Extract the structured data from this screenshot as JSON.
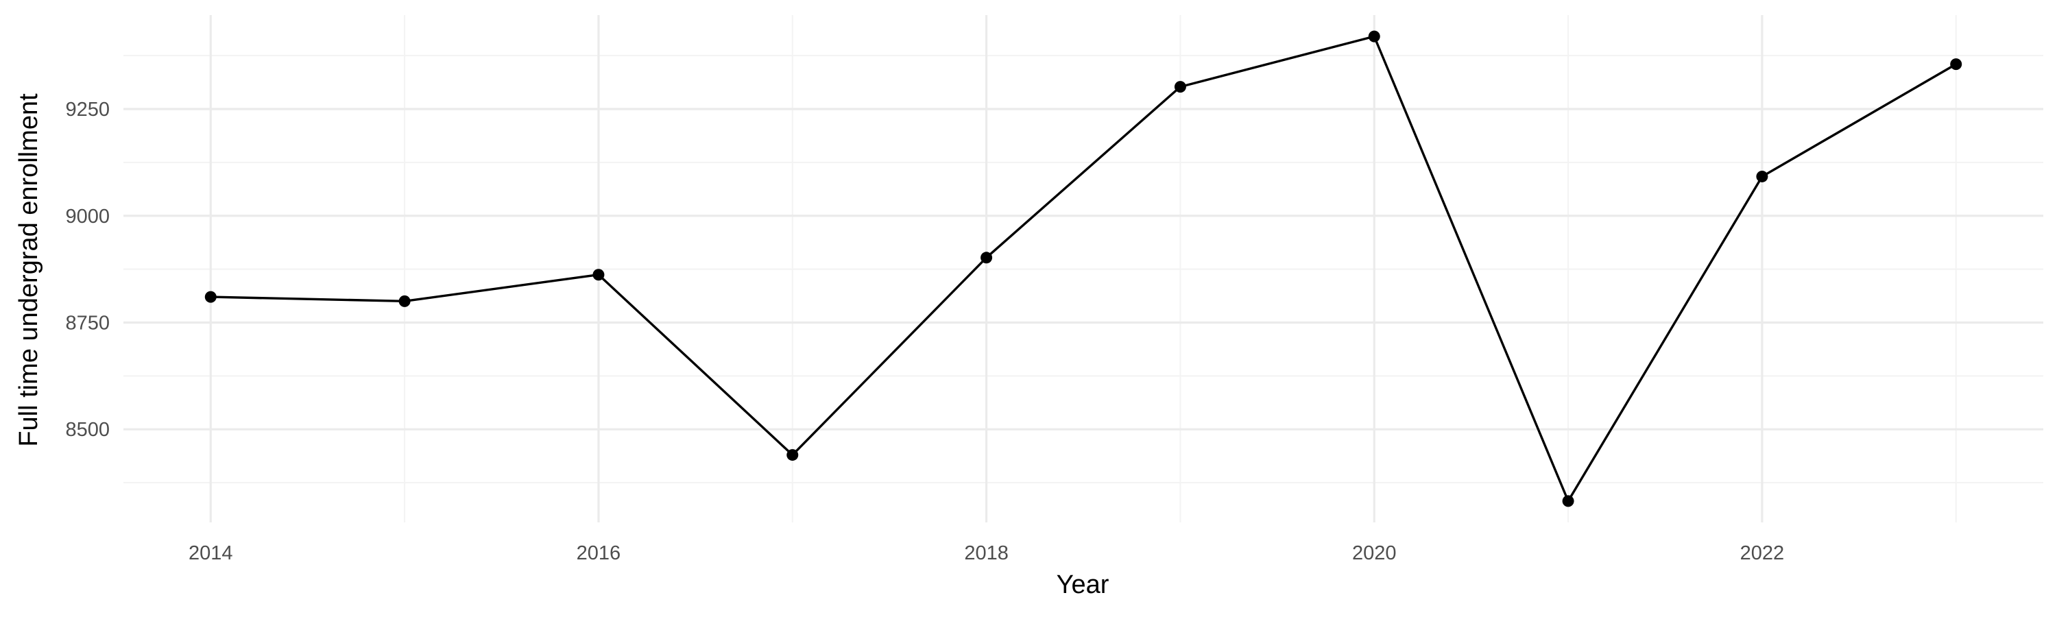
{
  "chart_data": {
    "type": "line",
    "title": "",
    "xlabel": "Year",
    "ylabel": "Full time undergrad enrollment",
    "x": [
      2014,
      2015,
      2016,
      2017,
      2018,
      2019,
      2020,
      2021,
      2022,
      2023
    ],
    "series": [
      {
        "values": [
          8810,
          8800,
          8862,
          8440,
          8902,
          9302,
          9420,
          8332,
          9092,
          9355
        ]
      }
    ],
    "x_ticks": [
      2014,
      2016,
      2018,
      2020,
      2022
    ],
    "y_ticks": [
      8500,
      8750,
      9000,
      9250
    ],
    "xlim": [
      2013.55,
      2023.45
    ],
    "ylim": [
      8282,
      9470
    ],
    "grid": true,
    "legend": "none",
    "line_color": "#000000",
    "grid_color": "#ebebeb"
  }
}
